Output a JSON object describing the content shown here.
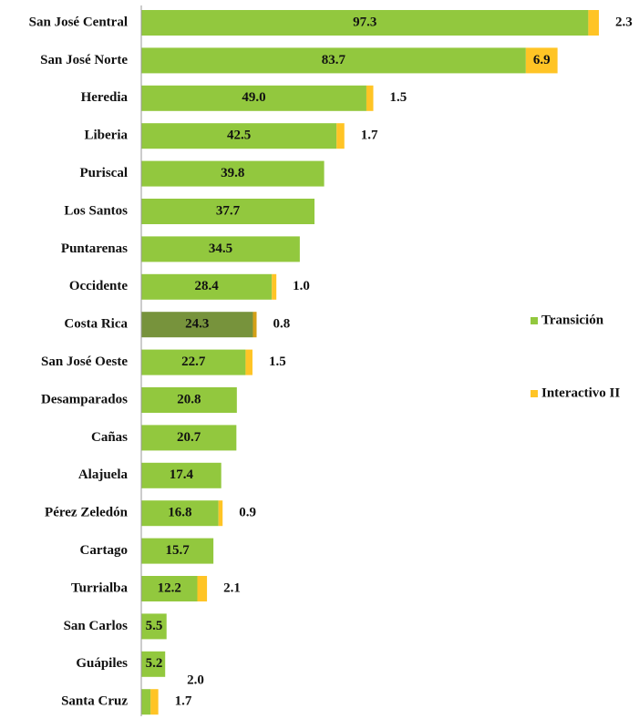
{
  "chart_data": {
    "type": "stacked_barh",
    "categories": [
      "San José Central",
      "San José Norte",
      "Heredia",
      "Liberia",
      "Puriscal",
      "Los Santos",
      "Puntarenas",
      "Occidente",
      "Costa Rica",
      "San José Oeste",
      "Desamparados",
      "Cañas",
      "Alajuela",
      "Pérez Zeledón",
      "Cartago",
      "Turrialba",
      "San Carlos",
      "Guápiles",
      "Santa Cruz"
    ],
    "series": [
      {
        "name": "Transición",
        "color": "#92c83e",
        "values": [
          97.3,
          83.7,
          49.0,
          42.5,
          39.8,
          37.7,
          34.5,
          28.4,
          24.3,
          22.7,
          20.8,
          20.7,
          17.4,
          16.8,
          15.7,
          12.2,
          5.5,
          5.2,
          2.0
        ],
        "value_labels": [
          "97.3",
          "83.7",
          "49.0",
          "42.5",
          "39.8",
          "37.7",
          "34.5",
          "28.4",
          "24.3",
          "22.7",
          "20.8",
          "20.7",
          "17.4",
          "16.8",
          "15.7",
          "12.2",
          "5.5",
          "5.2",
          "2.0"
        ]
      },
      {
        "name": "Interactivo II",
        "color": "#ffc425",
        "values": [
          2.3,
          6.9,
          1.5,
          1.7,
          null,
          null,
          null,
          1.0,
          0.8,
          1.5,
          null,
          null,
          null,
          0.9,
          null,
          2.1,
          null,
          null,
          1.7
        ],
        "value_labels": [
          "2.3",
          "6.9",
          "1.5",
          "1.7",
          null,
          null,
          null,
          "1.0",
          "0.8",
          "1.5",
          null,
          null,
          null,
          "0.9",
          null,
          "2.1",
          null,
          null,
          "1.7"
        ]
      }
    ],
    "highlight": {
      "category": "Costa Rica",
      "colors": [
        "#77933c",
        "#d4a017"
      ]
    },
    "xlim": [
      0,
      100
    ],
    "legend": "right"
  }
}
